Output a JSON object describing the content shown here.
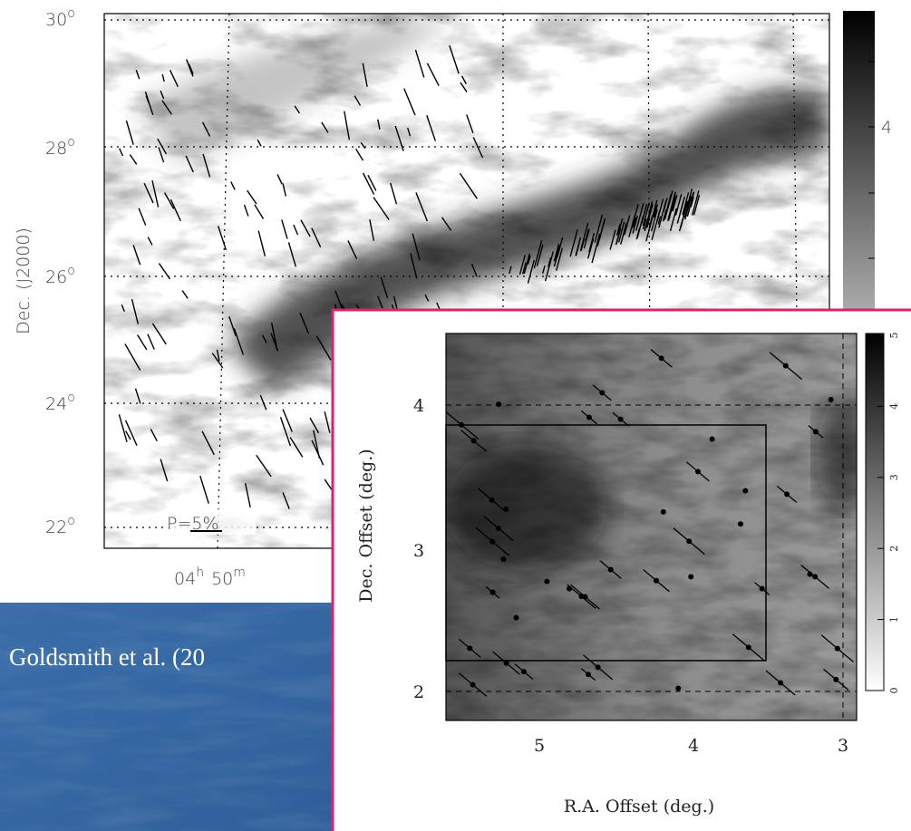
{
  "left_panel": {
    "y_axis_title": "Dec. (J2000)",
    "y_ticks": [
      {
        "base": "30",
        "sup": "o"
      },
      {
        "base": "28",
        "sup": "o"
      },
      {
        "base": "26",
        "sup": "o"
      },
      {
        "base": "24",
        "sup": "o"
      },
      {
        "base": "22",
        "sup": "o"
      }
    ],
    "x_tick": {
      "hours": "04",
      "h": "h",
      "minutes": "50",
      "m": "m"
    },
    "scale_label": "P=5%",
    "colorbar_tick": "4"
  },
  "right_panel": {
    "y_axis_title": "Dec. Offset (deg.)",
    "y_ticks": [
      "4",
      "3",
      "2"
    ],
    "x_axis_title": "R.A. Offset (deg.)",
    "x_ticks": [
      "5",
      "4",
      "3"
    ],
    "colorbar_ticks": [
      "5",
      "4",
      "3",
      "2",
      "1",
      "0"
    ]
  },
  "caption": "Goldsmith et al. (20"
}
